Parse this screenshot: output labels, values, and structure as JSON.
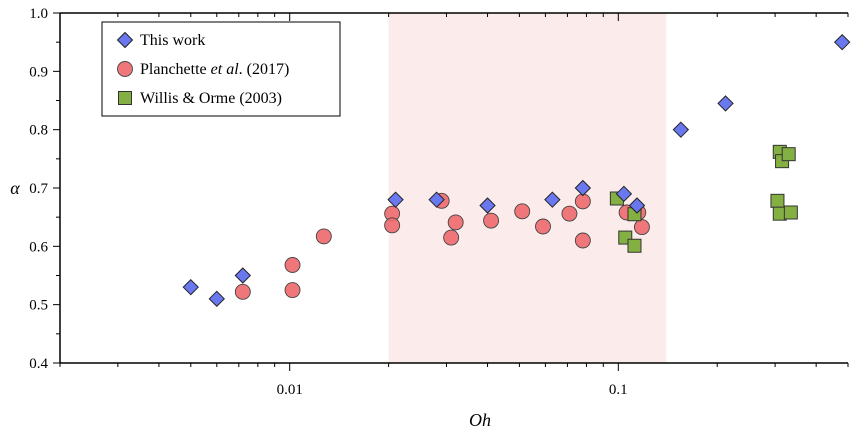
{
  "chart_data": {
    "type": "scatter",
    "xscale": "log",
    "xlim": [
      0.002,
      0.5
    ],
    "ylim": [
      0.4,
      1.0
    ],
    "xlabel": "Oh",
    "ylabel": "α",
    "x_ticks": [
      {
        "value": 0.01,
        "label": "0.01"
      },
      {
        "value": 0.1,
        "label": "0.1"
      }
    ],
    "y_ticks": [
      {
        "value": 0.4,
        "label": "0.4"
      },
      {
        "value": 0.5,
        "label": "0.5"
      },
      {
        "value": 0.6,
        "label": "0.6"
      },
      {
        "value": 0.7,
        "label": "0.7"
      },
      {
        "value": 0.8,
        "label": "0.8"
      },
      {
        "value": 0.9,
        "label": "0.9"
      },
      {
        "value": 1.0,
        "label": "1.0"
      }
    ],
    "shaded_region": {
      "x": [
        0.02,
        0.14
      ],
      "color": "#fcebeb"
    },
    "legend_position": "top-left",
    "series": [
      {
        "name_parts": [
          "This work"
        ],
        "marker": "diamond",
        "color": "#6a78ef",
        "points": [
          [
            0.005,
            0.53
          ],
          [
            0.006,
            0.51
          ],
          [
            0.0072,
            0.55
          ],
          [
            0.021,
            0.68
          ],
          [
            0.028,
            0.68
          ],
          [
            0.04,
            0.67
          ],
          [
            0.063,
            0.68
          ],
          [
            0.078,
            0.7
          ],
          [
            0.104,
            0.69
          ],
          [
            0.114,
            0.67
          ],
          [
            0.155,
            0.8
          ],
          [
            0.212,
            0.845
          ],
          [
            0.48,
            0.95
          ]
        ]
      },
      {
        "name_parts": [
          "Planchette ",
          "et al",
          ". (2017)"
        ],
        "marker": "circle",
        "color": "#ee6b6f",
        "points": [
          [
            0.0072,
            0.522
          ],
          [
            0.0102,
            0.568
          ],
          [
            0.0102,
            0.525
          ],
          [
            0.0127,
            0.617
          ],
          [
            0.0205,
            0.656
          ],
          [
            0.0205,
            0.636
          ],
          [
            0.029,
            0.678
          ],
          [
            0.031,
            0.615
          ],
          [
            0.032,
            0.641
          ],
          [
            0.041,
            0.644
          ],
          [
            0.051,
            0.66
          ],
          [
            0.059,
            0.634
          ],
          [
            0.071,
            0.656
          ],
          [
            0.078,
            0.677
          ],
          [
            0.078,
            0.61
          ],
          [
            0.106,
            0.658
          ],
          [
            0.115,
            0.658
          ],
          [
            0.118,
            0.633
          ]
        ]
      },
      {
        "name_parts": [
          "Willis & Orme (2003)"
        ],
        "marker": "square",
        "color": "#84b043",
        "points": [
          [
            0.099,
            0.682
          ],
          [
            0.105,
            0.615
          ],
          [
            0.112,
            0.655
          ],
          [
            0.112,
            0.601
          ],
          [
            0.31,
            0.762
          ],
          [
            0.315,
            0.746
          ],
          [
            0.33,
            0.758
          ],
          [
            0.305,
            0.678
          ],
          [
            0.31,
            0.656
          ],
          [
            0.335,
            0.658
          ]
        ]
      }
    ]
  }
}
